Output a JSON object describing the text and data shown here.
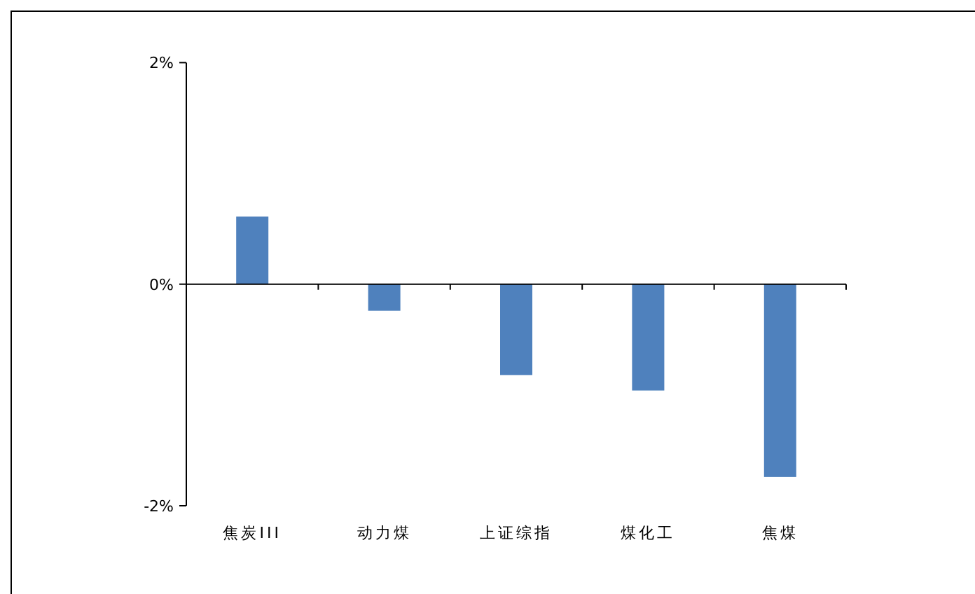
{
  "chart_data": {
    "type": "bar",
    "categories": [
      "焦炭III",
      "动力煤",
      "上证综指",
      "煤化工",
      "焦煤"
    ],
    "values": [
      0.61,
      -0.24,
      -0.82,
      -0.96,
      -1.74
    ],
    "color": "#4f81bd",
    "ylim": [
      -2,
      2
    ],
    "yticks": [
      {
        "value": -2,
        "label": "-2%"
      },
      {
        "value": 0,
        "label": "0%"
      },
      {
        "value": 2,
        "label": "2%"
      }
    ]
  }
}
